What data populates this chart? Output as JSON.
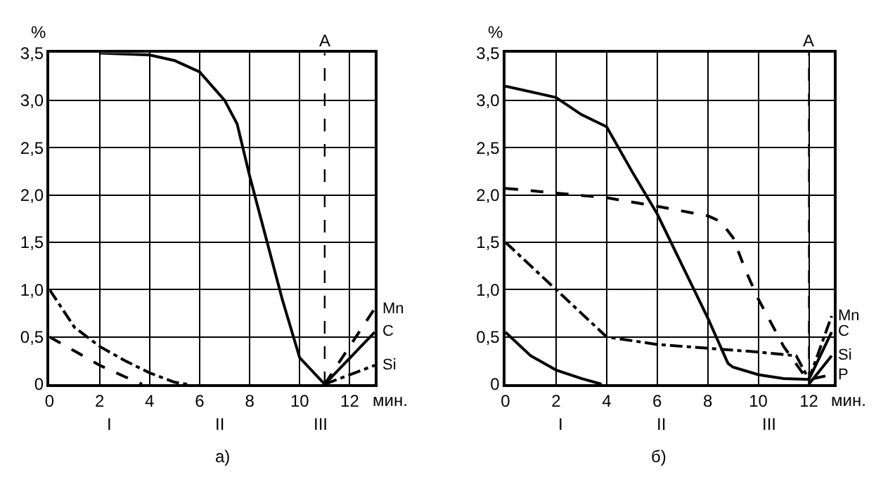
{
  "chart_data": [
    {
      "type": "line",
      "title": "а)",
      "xlabel": "мин.",
      "ylabel": "%",
      "xlim": [
        0,
        13
      ],
      "xticks": [
        0,
        2,
        4,
        6,
        8,
        10,
        12
      ],
      "ylim": [
        0,
        3.5
      ],
      "yticks": [
        0,
        {
          "value": 0.5,
          "label": "0,5"
        },
        {
          "value": 1.0,
          "label": "1,0"
        },
        {
          "value": 1.5,
          "label": "1,5"
        },
        {
          "value": 2.0,
          "label": "2,0"
        },
        {
          "value": 2.5,
          "label": "2,5"
        },
        {
          "value": 3.0,
          "label": "3,0"
        },
        {
          "value": 3.5,
          "label": "3,5"
        }
      ],
      "grid": true,
      "series": [
        {
          "name": "Mn",
          "color": "#000000",
          "line_style": "dashed",
          "x": [
            0,
            1,
            2,
            3,
            3.7,
            3.8,
            11,
            13
          ],
          "values": [
            0.5,
            0.35,
            0.2,
            0.08,
            0,
            null,
            0,
            0.8
          ]
        },
        {
          "name": "C",
          "color": "#000000",
          "line_style": "solid",
          "x": [
            2,
            4,
            5,
            6,
            7,
            7.5,
            8,
            8.7,
            9.3,
            10,
            11,
            13
          ],
          "values": [
            3.5,
            3.48,
            3.42,
            3.3,
            3.0,
            2.75,
            2.2,
            1.5,
            0.9,
            0.28,
            0,
            0.55
          ]
        },
        {
          "name": "Si",
          "color": "#000000",
          "line_style": "dotted",
          "x": [
            0,
            1,
            2,
            3,
            4,
            5,
            5.5,
            5.6,
            11,
            13
          ],
          "values": [
            1.0,
            0.6,
            0.4,
            0.25,
            0.12,
            0.02,
            0,
            null,
            0,
            0.2
          ]
        }
      ],
      "ref_lines": [
        {
          "axis": "x",
          "value": 11,
          "label": "A",
          "line_style": "dashed"
        }
      ],
      "annotations": [
        "I",
        "II",
        "III"
      ]
    },
    {
      "type": "line",
      "title": "б)",
      "xlabel": "мин.",
      "ylabel": "%",
      "xlim": [
        0,
        13
      ],
      "xticks": [
        0,
        2,
        4,
        6,
        8,
        10,
        12
      ],
      "ylim": [
        0,
        3.5
      ],
      "yticks": [
        0,
        {
          "value": 0.5,
          "label": "0,5"
        },
        {
          "value": 1.0,
          "label": "1,0"
        },
        {
          "value": 1.5,
          "label": "1,5"
        },
        {
          "value": 2.0,
          "label": "2,0"
        },
        {
          "value": 2.5,
          "label": "2,5"
        },
        {
          "value": 3.0,
          "label": "3,0"
        },
        {
          "value": 3.5,
          "label": "3,5"
        }
      ],
      "grid": true,
      "series": [
        {
          "name": "Mn",
          "color": "#000000",
          "line_style": "dotted",
          "x": [
            0,
            2,
            4,
            6,
            8,
            10,
            11.5,
            12,
            12.9
          ],
          "values": [
            1.5,
            1.0,
            0.5,
            0.42,
            0.38,
            0.34,
            0.3,
            0.05,
            0.72
          ]
        },
        {
          "name": "C",
          "color": "#000000",
          "line_style": "solid",
          "x": [
            0,
            2,
            3,
            4,
            5,
            6,
            7,
            8,
            8.8,
            9,
            10,
            11,
            12,
            12.9
          ],
          "values": [
            3.15,
            3.03,
            2.85,
            2.72,
            2.25,
            1.8,
            1.25,
            0.7,
            0.22,
            0.18,
            0.1,
            0.06,
            0.05,
            0.55
          ]
        },
        {
          "name": "Si",
          "color": "#000000",
          "line_style": "solid",
          "x": [
            0,
            1,
            2,
            3,
            3.8,
            3.9,
            12,
            12.9
          ],
          "values": [
            0.55,
            0.3,
            0.15,
            0.06,
            0,
            null,
            0,
            0.3
          ]
        },
        {
          "name": "P",
          "color": "#000000",
          "line_style": "dashed",
          "x": [
            0,
            2,
            4,
            6,
            8,
            8.5,
            9,
            9.5,
            10,
            11,
            11.8,
            12,
            12.9
          ],
          "values": [
            2.07,
            2.02,
            1.97,
            1.88,
            1.78,
            1.72,
            1.55,
            1.2,
            0.9,
            0.4,
            0.1,
            0.05,
            0.1
          ]
        }
      ],
      "ref_lines": [
        {
          "axis": "x",
          "value": 12,
          "label": "A",
          "line_style": "dashed"
        }
      ],
      "annotations": [
        "I",
        "II",
        "III"
      ]
    }
  ]
}
